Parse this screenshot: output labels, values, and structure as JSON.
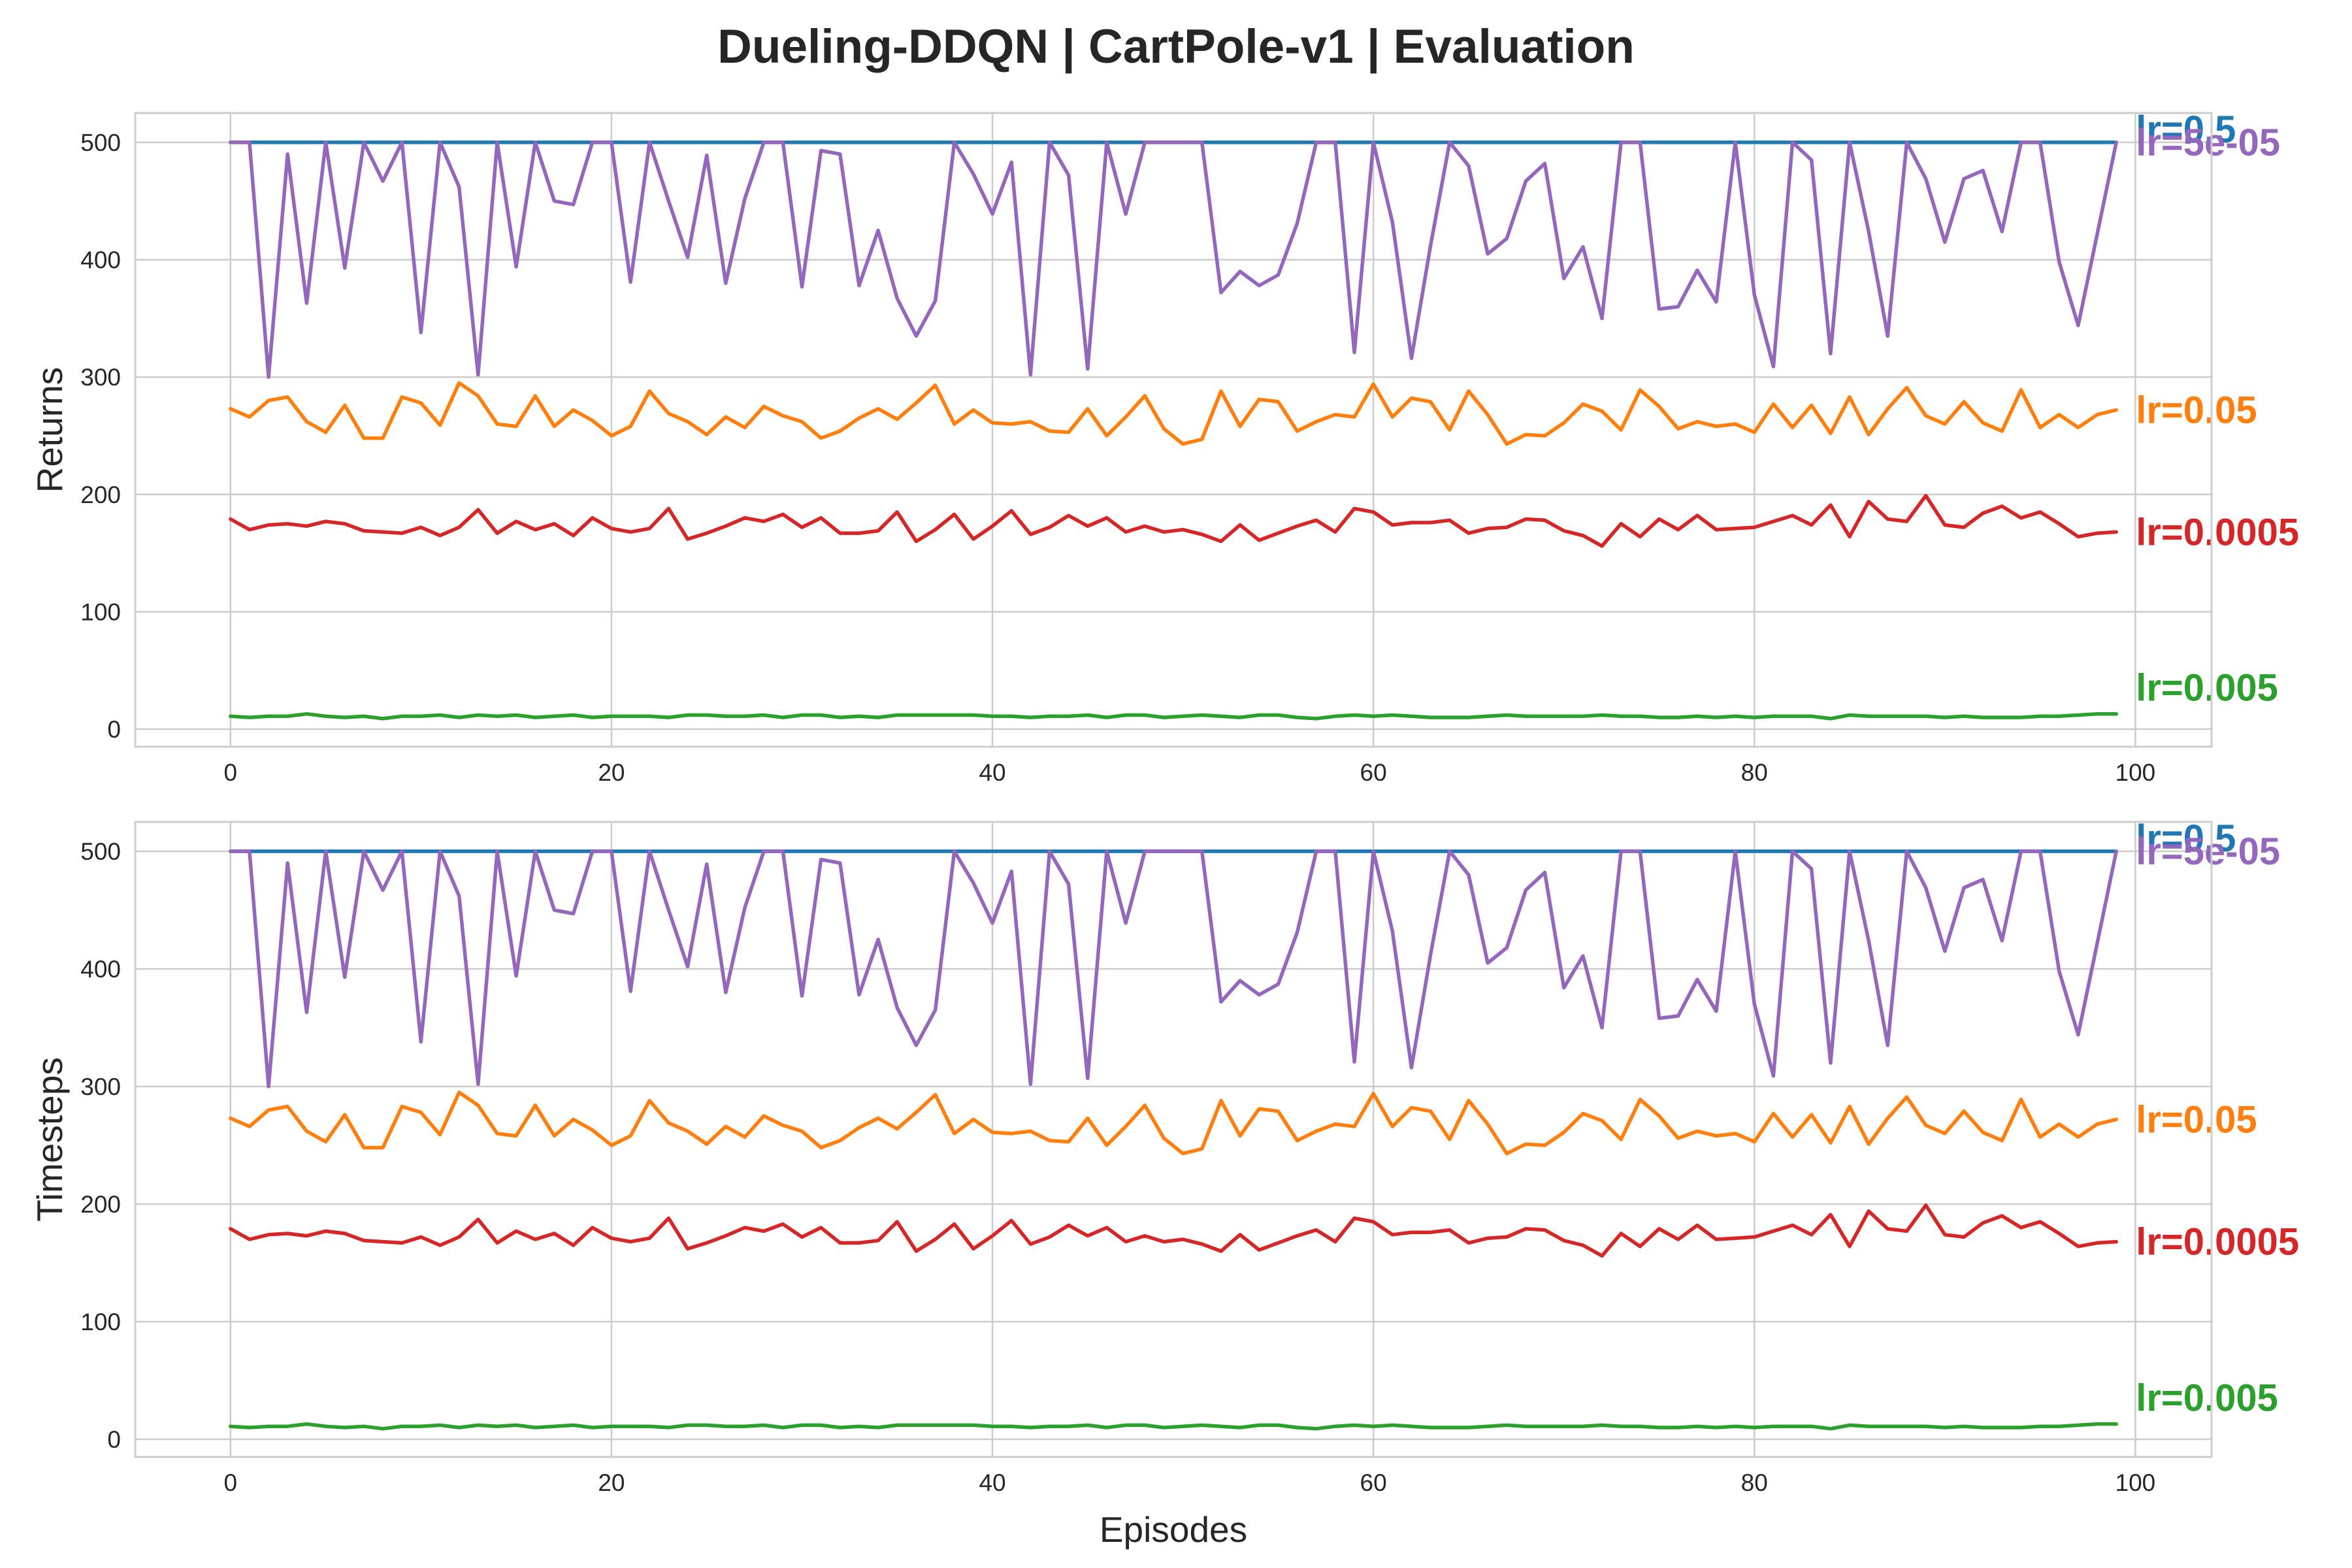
{
  "chart_data": [
    {
      "type": "line",
      "title": "Dueling-DDQN | CartPole-v1 | Evaluation",
      "xlabel": "",
      "ylabel": "Returns",
      "xlim": [
        -5,
        104
      ],
      "ylim": [
        -15,
        525
      ],
      "xticks": [
        0,
        20,
        40,
        60,
        80,
        100
      ],
      "yticks": [
        0,
        100,
        200,
        300,
        400,
        500
      ],
      "grid": true,
      "legend": "none (series labels printed at right end of lines)",
      "episodes_range": [
        0,
        99
      ],
      "series": [
        {
          "name": "lr=0.5",
          "color": "#1f77b4",
          "values": [
            500,
            500,
            500,
            500,
            500,
            500,
            500,
            500,
            500,
            500,
            500,
            500,
            500,
            500,
            500,
            500,
            500,
            500,
            500,
            500,
            500,
            500,
            500,
            500,
            500,
            500,
            500,
            500,
            500,
            500,
            500,
            500,
            500,
            500,
            500,
            500,
            500,
            500,
            500,
            500,
            500,
            500,
            500,
            500,
            500,
            500,
            500,
            500,
            500,
            500,
            500,
            500,
            500,
            500,
            500,
            500,
            500,
            500,
            500,
            500,
            500,
            500,
            500,
            500,
            500,
            500,
            500,
            500,
            500,
            500,
            500,
            500,
            500,
            500,
            500,
            500,
            500,
            500,
            500,
            500,
            500,
            500,
            500,
            500,
            500,
            500,
            500,
            500,
            500,
            500,
            500,
            500,
            500,
            500,
            500,
            500,
            500,
            500,
            500,
            500
          ]
        },
        {
          "name": "lr=5e-05",
          "color": "#9467bd",
          "values": [
            500,
            500,
            300,
            490,
            363,
            500,
            393,
            500,
            467,
            500,
            338,
            500,
            462,
            302,
            500,
            394,
            500,
            450,
            447,
            500,
            500,
            381,
            500,
            450,
            402,
            489,
            380,
            452,
            500,
            500,
            377,
            493,
            490,
            378,
            425,
            367,
            335,
            365,
            500,
            473,
            439,
            483,
            302,
            500,
            472,
            307,
            500,
            439,
            500,
            500,
            500,
            500,
            372,
            390,
            378,
            387,
            431,
            500,
            500,
            321,
            500,
            432,
            316,
            412,
            500,
            480,
            405,
            418,
            467,
            482,
            384,
            411,
            350,
            500,
            500,
            358,
            360,
            391,
            364,
            500,
            370,
            309,
            500,
            485,
            320,
            500,
            424,
            335,
            500,
            469,
            415,
            469,
            476,
            424,
            500,
            500,
            398,
            344,
            422,
            500
          ]
        },
        {
          "name": "lr=0.05",
          "color": "#ff7f0e",
          "values": [
            273,
            266,
            280,
            283,
            262,
            253,
            276,
            248,
            248,
            283,
            278,
            259,
            295,
            284,
            260,
            258,
            284,
            258,
            272,
            263,
            250,
            258,
            288,
            269,
            262,
            251,
            266,
            257,
            275,
            267,
            262,
            248,
            254,
            265,
            273,
            264,
            278,
            293,
            260,
            272,
            261,
            260,
            262,
            254,
            253,
            273,
            250,
            266,
            284,
            256,
            243,
            247,
            288,
            258,
            281,
            279,
            254,
            262,
            268,
            266,
            294,
            266,
            282,
            279,
            255,
            288,
            268,
            243,
            251,
            250,
            261,
            277,
            271,
            255,
            289,
            275,
            256,
            262,
            258,
            260,
            253,
            277,
            257,
            276,
            252,
            283,
            251,
            273,
            291,
            267,
            260,
            279,
            261,
            254,
            289,
            257,
            268,
            257,
            268,
            272
          ]
        },
        {
          "name": "lr=0.0005",
          "color": "#d62728",
          "values": [
            179,
            170,
            174,
            175,
            173,
            177,
            175,
            169,
            168,
            167,
            172,
            165,
            172,
            187,
            167,
            177,
            170,
            175,
            165,
            180,
            171,
            168,
            171,
            188,
            162,
            167,
            173,
            180,
            177,
            183,
            172,
            180,
            167,
            167,
            169,
            185,
            160,
            170,
            183,
            162,
            173,
            186,
            166,
            172,
            182,
            173,
            180,
            168,
            173,
            168,
            170,
            166,
            160,
            174,
            161,
            167,
            173,
            178,
            168,
            188,
            185,
            174,
            176,
            176,
            178,
            167,
            171,
            172,
            179,
            178,
            169,
            165,
            156,
            175,
            164,
            179,
            170,
            182,
            170,
            171,
            172,
            177,
            182,
            174,
            191,
            164,
            194,
            179,
            177,
            199,
            174,
            172,
            184,
            190,
            180,
            185,
            175,
            164,
            167,
            168
          ]
        },
        {
          "name": "lr=0.005",
          "color": "#2ca02c",
          "values": [
            11,
            10,
            11,
            11,
            13,
            11,
            10,
            11,
            9,
            11,
            11,
            12,
            10,
            12,
            11,
            12,
            10,
            11,
            12,
            10,
            11,
            11,
            11,
            10,
            12,
            12,
            11,
            11,
            12,
            10,
            12,
            12,
            10,
            11,
            10,
            12,
            12,
            12,
            12,
            12,
            11,
            11,
            10,
            11,
            11,
            12,
            10,
            12,
            12,
            10,
            11,
            12,
            11,
            10,
            12,
            12,
            10,
            9,
            11,
            12,
            11,
            12,
            11,
            10,
            10,
            10,
            11,
            12,
            11,
            11,
            11,
            11,
            12,
            11,
            11,
            10,
            10,
            11,
            10,
            11,
            10,
            11,
            11,
            11,
            9,
            12,
            11,
            11,
            11,
            11,
            10,
            11,
            10,
            10,
            10,
            11,
            11,
            12,
            13,
            13
          ]
        }
      ]
    },
    {
      "type": "line",
      "title": "",
      "xlabel": "Episodes",
      "ylabel": "Timesteps",
      "xlim": [
        -5,
        104
      ],
      "ylim": [
        -15,
        525
      ],
      "xticks": [
        0,
        20,
        40,
        60,
        80,
        100
      ],
      "yticks": [
        0,
        100,
        200,
        300,
        400,
        500
      ],
      "grid": true,
      "legend": "none (series labels printed at right end of lines)",
      "episodes_range": [
        0,
        99
      ],
      "series": [
        {
          "name": "lr=0.5",
          "color": "#1f77b4",
          "values": [
            500,
            500,
            500,
            500,
            500,
            500,
            500,
            500,
            500,
            500,
            500,
            500,
            500,
            500,
            500,
            500,
            500,
            500,
            500,
            500,
            500,
            500,
            500,
            500,
            500,
            500,
            500,
            500,
            500,
            500,
            500,
            500,
            500,
            500,
            500,
            500,
            500,
            500,
            500,
            500,
            500,
            500,
            500,
            500,
            500,
            500,
            500,
            500,
            500,
            500,
            500,
            500,
            500,
            500,
            500,
            500,
            500,
            500,
            500,
            500,
            500,
            500,
            500,
            500,
            500,
            500,
            500,
            500,
            500,
            500,
            500,
            500,
            500,
            500,
            500,
            500,
            500,
            500,
            500,
            500,
            500,
            500,
            500,
            500,
            500,
            500,
            500,
            500,
            500,
            500,
            500,
            500,
            500,
            500,
            500,
            500,
            500,
            500,
            500,
            500
          ]
        },
        {
          "name": "lr=5e-05",
          "color": "#9467bd",
          "values": [
            500,
            500,
            300,
            490,
            363,
            500,
            393,
            500,
            467,
            500,
            338,
            500,
            462,
            302,
            500,
            394,
            500,
            450,
            447,
            500,
            500,
            381,
            500,
            450,
            402,
            489,
            380,
            452,
            500,
            500,
            377,
            493,
            490,
            378,
            425,
            367,
            335,
            365,
            500,
            473,
            439,
            483,
            302,
            500,
            472,
            307,
            500,
            439,
            500,
            500,
            500,
            500,
            372,
            390,
            378,
            387,
            431,
            500,
            500,
            321,
            500,
            432,
            316,
            412,
            500,
            480,
            405,
            418,
            467,
            482,
            384,
            411,
            350,
            500,
            500,
            358,
            360,
            391,
            364,
            500,
            370,
            309,
            500,
            485,
            320,
            500,
            424,
            335,
            500,
            469,
            415,
            469,
            476,
            424,
            500,
            500,
            398,
            344,
            422,
            500
          ]
        },
        {
          "name": "lr=0.05",
          "color": "#ff7f0e",
          "values": [
            273,
            266,
            280,
            283,
            262,
            253,
            276,
            248,
            248,
            283,
            278,
            259,
            295,
            284,
            260,
            258,
            284,
            258,
            272,
            263,
            250,
            258,
            288,
            269,
            262,
            251,
            266,
            257,
            275,
            267,
            262,
            248,
            254,
            265,
            273,
            264,
            278,
            293,
            260,
            272,
            261,
            260,
            262,
            254,
            253,
            273,
            250,
            266,
            284,
            256,
            243,
            247,
            288,
            258,
            281,
            279,
            254,
            262,
            268,
            266,
            294,
            266,
            282,
            279,
            255,
            288,
            268,
            243,
            251,
            250,
            261,
            277,
            271,
            255,
            289,
            275,
            256,
            262,
            258,
            260,
            253,
            277,
            257,
            276,
            252,
            283,
            251,
            273,
            291,
            267,
            260,
            279,
            261,
            254,
            289,
            257,
            268,
            257,
            268,
            272
          ]
        },
        {
          "name": "lr=0.0005",
          "color": "#d62728",
          "values": [
            179,
            170,
            174,
            175,
            173,
            177,
            175,
            169,
            168,
            167,
            172,
            165,
            172,
            187,
            167,
            177,
            170,
            175,
            165,
            180,
            171,
            168,
            171,
            188,
            162,
            167,
            173,
            180,
            177,
            183,
            172,
            180,
            167,
            167,
            169,
            185,
            160,
            170,
            183,
            162,
            173,
            186,
            166,
            172,
            182,
            173,
            180,
            168,
            173,
            168,
            170,
            166,
            160,
            174,
            161,
            167,
            173,
            178,
            168,
            188,
            185,
            174,
            176,
            176,
            178,
            167,
            171,
            172,
            179,
            178,
            169,
            165,
            156,
            175,
            164,
            179,
            170,
            182,
            170,
            171,
            172,
            177,
            182,
            174,
            191,
            164,
            194,
            179,
            177,
            199,
            174,
            172,
            184,
            190,
            180,
            185,
            175,
            164,
            167,
            168
          ]
        },
        {
          "name": "lr=0.005",
          "color": "#2ca02c",
          "values": [
            11,
            10,
            11,
            11,
            13,
            11,
            10,
            11,
            9,
            11,
            11,
            12,
            10,
            12,
            11,
            12,
            10,
            11,
            12,
            10,
            11,
            11,
            11,
            10,
            12,
            12,
            11,
            11,
            12,
            10,
            12,
            12,
            10,
            11,
            10,
            12,
            12,
            12,
            12,
            12,
            11,
            11,
            10,
            11,
            11,
            12,
            10,
            12,
            12,
            10,
            11,
            12,
            11,
            10,
            12,
            12,
            10,
            9,
            11,
            12,
            11,
            12,
            11,
            10,
            10,
            10,
            11,
            12,
            11,
            11,
            11,
            11,
            12,
            11,
            11,
            10,
            10,
            11,
            10,
            11,
            10,
            11,
            11,
            11,
            9,
            12,
            11,
            11,
            11,
            11,
            10,
            11,
            10,
            10,
            10,
            11,
            11,
            12,
            13,
            13
          ]
        }
      ]
    }
  ]
}
